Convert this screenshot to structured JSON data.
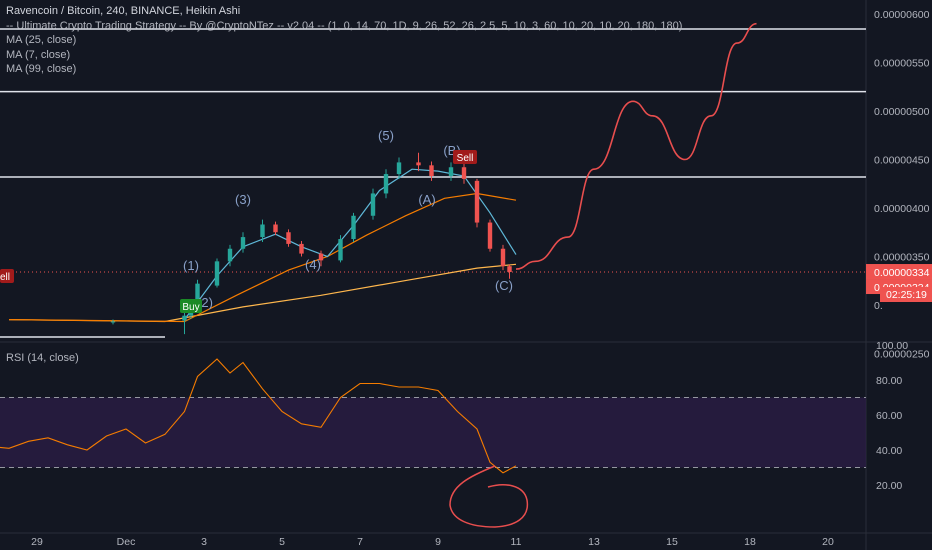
{
  "legend": {
    "title": "Ravencoin / Bitcoin, 240, BINANCE, Heikin Ashi",
    "strategy": "-- Ultimate Crypto Trading Strategy -- By @CryptoNTez -- v2.04 -- (1, 0, 14, 70, 1D, 9, 26, 52, 26, 2.5, 5, 10, 3, 60, 10, 20, 10, 20, 180, 180)",
    "ma1": "MA (25, close)",
    "ma2": "MA (7, close)",
    "ma3": "MA (99, close)"
  },
  "rsi_label": "RSI (14, close)",
  "price_axis": {
    "ticks": [
      "0.00000600",
      "0.00000550",
      "0.00000500",
      "0.00000450",
      "0.00000400",
      "0.00000350",
      "0.00000250"
    ],
    "last_price_a": "0.00000334",
    "last_price_b": "0.00000334",
    "partial_label": "0.",
    "countdown": "02:25:19"
  },
  "rsi_axis": {
    "ticks": [
      "100.00",
      "80.00",
      "60.00",
      "40.00",
      "20.00"
    ]
  },
  "time_axis": {
    "labels": [
      "29",
      "Dec",
      "3",
      "5",
      "7",
      "9",
      "11",
      "13",
      "15",
      "18",
      "20"
    ]
  },
  "annotations": {
    "wave1": "(1)",
    "wave2": "(2)",
    "wave3": "(3)",
    "wave4": "(4)",
    "wave5": "(5)",
    "waveA": "(A)",
    "waveB": "(B)",
    "waveC": "(C)",
    "buy": "Buy",
    "sell": "Sell",
    "sell_edge": "ell"
  },
  "colors": {
    "background": "#131722",
    "up": "#26a69a",
    "down": "#ef5350",
    "ma_fast": "#5fb8d8",
    "ma_mid": "#f57c00",
    "ma_slow": "#ffb74d",
    "rsi": "#f57c00",
    "rsi_band": "#2c1d47",
    "projection": "#e84e4e",
    "wave_label": "#8aa1c9",
    "buy": "#1b8a26",
    "sell": "#a11b1b"
  },
  "chart_data": {
    "type": "candlestick",
    "x_type": "date",
    "ylim": [
      2.5e-06,
      6e-06
    ],
    "horizontal_levels": [
      5.845e-06,
      5.2e-06,
      4.32e-06,
      2.67e-06
    ],
    "candles": [
      {
        "x": "2019-11-30 16:00",
        "o": 2.82e-06,
        "h": 2.85e-06,
        "l": 2.8e-06,
        "c": 2.83e-06
      },
      {
        "x": "2019-12-02 12:00",
        "o": 2.84e-06,
        "h": 2.92e-06,
        "l": 2.7e-06,
        "c": 2.89e-06
      },
      {
        "x": "2019-12-02 16:00",
        "o": 2.89e-06,
        "h": 3.05e-06,
        "l": 2.86e-06,
        "c": 3.03e-06
      },
      {
        "x": "2019-12-02 20:00",
        "o": 3.03e-06,
        "h": 3.26e-06,
        "l": 3e-06,
        "c": 3.22e-06
      },
      {
        "x": "2019-12-03 08:00",
        "o": 3.2e-06,
        "h": 3.48e-06,
        "l": 3.18e-06,
        "c": 3.45e-06
      },
      {
        "x": "2019-12-03 16:00",
        "o": 3.45e-06,
        "h": 3.62e-06,
        "l": 3.4e-06,
        "c": 3.58e-06
      },
      {
        "x": "2019-12-04 00:00",
        "o": 3.58e-06,
        "h": 3.75e-06,
        "l": 3.54e-06,
        "c": 3.7e-06
      },
      {
        "x": "2019-12-04 12:00",
        "o": 3.7e-06,
        "h": 3.88e-06,
        "l": 3.65e-06,
        "c": 3.83e-06
      },
      {
        "x": "2019-12-04 20:00",
        "o": 3.83e-06,
        "h": 3.86e-06,
        "l": 3.72e-06,
        "c": 3.75e-06
      },
      {
        "x": "2019-12-05 04:00",
        "o": 3.75e-06,
        "h": 3.78e-06,
        "l": 3.6e-06,
        "c": 3.63e-06
      },
      {
        "x": "2019-12-05 12:00",
        "o": 3.63e-06,
        "h": 3.66e-06,
        "l": 3.5e-06,
        "c": 3.53e-06
      },
      {
        "x": "2019-12-06 00:00",
        "o": 3.53e-06,
        "h": 3.56e-06,
        "l": 3.4e-06,
        "c": 3.46e-06
      },
      {
        "x": "2019-12-06 12:00",
        "o": 3.46e-06,
        "h": 3.72e-06,
        "l": 3.44e-06,
        "c": 3.68e-06
      },
      {
        "x": "2019-12-06 20:00",
        "o": 3.68e-06,
        "h": 3.95e-06,
        "l": 3.65e-06,
        "c": 3.92e-06
      },
      {
        "x": "2019-12-07 08:00",
        "o": 3.92e-06,
        "h": 4.2e-06,
        "l": 3.88e-06,
        "c": 4.15e-06
      },
      {
        "x": "2019-12-07 16:00",
        "o": 4.15e-06,
        "h": 4.4e-06,
        "l": 4.1e-06,
        "c": 4.35e-06
      },
      {
        "x": "2019-12-08 00:00",
        "o": 4.35e-06,
        "h": 4.52e-06,
        "l": 4.3e-06,
        "c": 4.47e-06
      },
      {
        "x": "2019-12-08 12:00",
        "o": 4.47e-06,
        "h": 4.57e-06,
        "l": 4.38e-06,
        "c": 4.44e-06
      },
      {
        "x": "2019-12-08 20:00",
        "o": 4.44e-06,
        "h": 4.48e-06,
        "l": 4.28e-06,
        "c": 4.33e-06
      },
      {
        "x": "2019-12-09 08:00",
        "o": 4.33e-06,
        "h": 4.47e-06,
        "l": 4.28e-06,
        "c": 4.42e-06
      },
      {
        "x": "2019-12-09 16:00",
        "o": 4.42e-06,
        "h": 4.52e-06,
        "l": 4.25e-06,
        "c": 4.3e-06
      },
      {
        "x": "2019-12-10 00:00",
        "o": 4.28e-06,
        "h": 4.3e-06,
        "l": 3.8e-06,
        "c": 3.85e-06
      },
      {
        "x": "2019-12-10 08:00",
        "o": 3.85e-06,
        "h": 3.88e-06,
        "l": 3.55e-06,
        "c": 3.58e-06
      },
      {
        "x": "2019-12-10 16:00",
        "o": 3.58e-06,
        "h": 3.62e-06,
        "l": 3.36e-06,
        "c": 3.4e-06
      },
      {
        "x": "2019-12-10 20:00",
        "o": 3.4e-06,
        "h": 3.42e-06,
        "l": 3.27e-06,
        "c": 3.34e-06
      }
    ],
    "ma_fast": {
      "x": [
        "2019-12-02 12:00",
        "2019-12-03 08:00",
        "2019-12-04 00:00",
        "2019-12-04 20:00",
        "2019-12-05 12:00",
        "2019-12-06 04:00",
        "2019-12-06 20:00",
        "2019-12-07 12:00",
        "2019-12-08 08:00",
        "2019-12-09 00:00",
        "2019-12-09 16:00",
        "2019-12-10 08:00",
        "2019-12-11 00:00"
      ],
      "values": [
        2.85e-06,
        3.3e-06,
        3.6e-06,
        3.73e-06,
        3.6e-06,
        3.5e-06,
        3.82e-06,
        4.18e-06,
        4.4e-06,
        4.38e-06,
        4.33e-06,
        3.95e-06,
        3.52e-06
      ]
    },
    "ma_mid": {
      "x": [
        "2019-11-28 00:00",
        "2019-12-02 12:00",
        "2019-12-03 20:00",
        "2019-12-05 04:00",
        "2019-12-06 04:00",
        "2019-12-07 04:00",
        "2019-12-08 04:00",
        "2019-12-09 04:00",
        "2019-12-10 00:00",
        "2019-12-11 00:00"
      ],
      "values": [
        2.85e-06,
        2.83e-06,
        3.1e-06,
        3.36e-06,
        3.5e-06,
        3.72e-06,
        3.92e-06,
        4.1e-06,
        4.15e-06,
        4.08e-06
      ]
    },
    "ma_slow": {
      "x": [
        "2019-11-28 00:00",
        "2019-12-02 00:00",
        "2019-12-04 00:00",
        "2019-12-06 00:00",
        "2019-12-08 00:00",
        "2019-12-10 00:00",
        "2019-12-11 00:00"
      ],
      "values": [
        2.85e-06,
        2.83e-06,
        2.98e-06,
        3.1e-06,
        3.24e-06,
        3.38e-06,
        3.42e-06
      ]
    },
    "projection": {
      "x": [
        "2019-12-11 00:00",
        "2019-12-11 12:00",
        "2019-12-12 08:00",
        "2019-12-13 00:00",
        "2019-12-14 00:00",
        "2019-12-14 12:00",
        "2019-12-15 08:00",
        "2019-12-16 00:00",
        "2019-12-16 16:00",
        "2019-12-17 04:00"
      ],
      "values": [
        3.37e-06,
        3.45e-06,
        3.7e-06,
        4.4e-06,
        5.1e-06,
        4.95e-06,
        4.5e-06,
        4.95e-06,
        5.7e-06,
        5.9e-06
      ]
    },
    "rsi": {
      "ylim": [
        20,
        100
      ],
      "levels": [
        70,
        30
      ],
      "x": [
        "2019-11-27 12:00",
        "2019-11-28 00:00",
        "2019-11-28 12:00",
        "2019-11-29 00:00",
        "2019-11-29 12:00",
        "2019-11-30 00:00",
        "2019-11-30 12:00",
        "2019-12-01 00:00",
        "2019-12-01 12:00",
        "2019-12-02 00:00",
        "2019-12-02 12:00",
        "2019-12-02 20:00",
        "2019-12-03 08:00",
        "2019-12-03 16:00",
        "2019-12-04 00:00",
        "2019-12-04 12:00",
        "2019-12-05 00:00",
        "2019-12-05 12:00",
        "2019-12-06 00:00",
        "2019-12-06 12:00",
        "2019-12-07 00:00",
        "2019-12-07 12:00",
        "2019-12-08 00:00",
        "2019-12-08 12:00",
        "2019-12-09 00:00",
        "2019-12-09 12:00",
        "2019-12-10 00:00",
        "2019-12-10 08:00",
        "2019-12-10 16:00",
        "2019-12-11 00:00"
      ],
      "values": [
        42,
        41,
        45,
        47,
        43,
        40,
        48,
        52,
        44,
        49,
        62,
        82,
        92,
        84,
        90,
        75,
        62,
        55,
        53,
        70,
        78,
        78,
        76,
        76,
        74,
        62,
        52,
        33,
        27,
        31
      ]
    }
  }
}
